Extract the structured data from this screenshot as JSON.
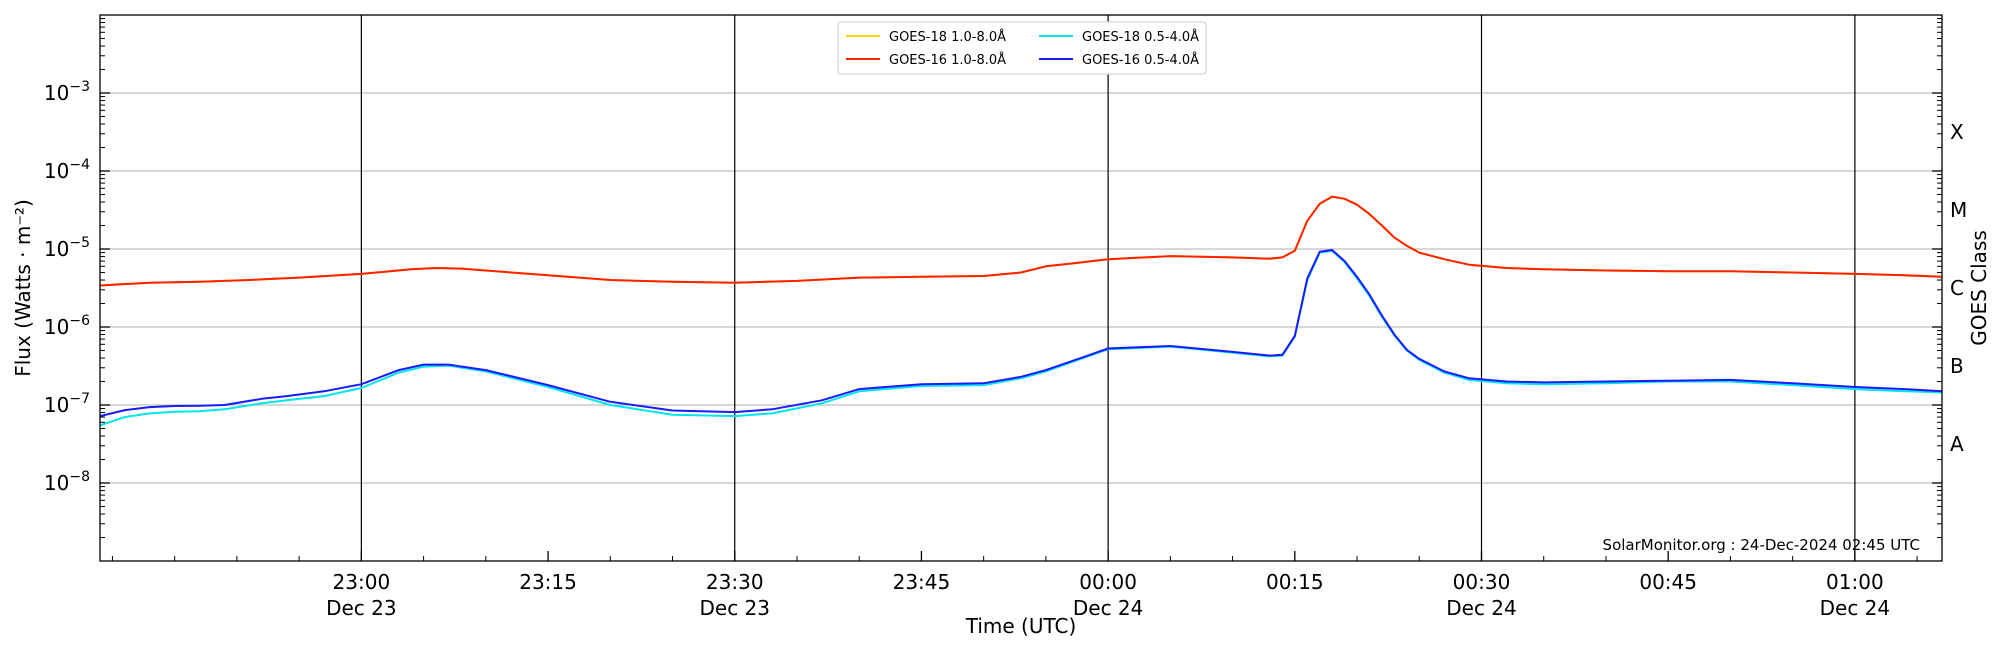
{
  "chart_data": {
    "type": "line",
    "title": "",
    "xlabel": "Time (UTC)",
    "ylabel": "Flux (Watts · m⁻²)",
    "y2label": "GOES Class",
    "y_scale": "log",
    "ylim": [
      1e-09,
      0.01
    ],
    "xlim": [
      "Dec 23 22:39",
      "Dec 24 01:07"
    ],
    "grid": "horizontal lines at major y ticks; vertical lines at every 30 min",
    "legend_position": "top-center",
    "y_ticks": [
      {
        "value": 1e-08,
        "base": "10",
        "exp": "−8"
      },
      {
        "value": 1e-07,
        "base": "10",
        "exp": "−7"
      },
      {
        "value": 1e-06,
        "base": "10",
        "exp": "−6"
      },
      {
        "value": 1e-05,
        "base": "10",
        "exp": "−5"
      },
      {
        "value": 0.0001,
        "base": "10",
        "exp": "−4"
      },
      {
        "value": 0.001,
        "base": "10",
        "exp": "−3"
      }
    ],
    "goes_classes": [
      {
        "label": "A",
        "value": 3.16e-08
      },
      {
        "label": "B",
        "value": 3.16e-07
      },
      {
        "label": "C",
        "value": 3.16e-06
      },
      {
        "label": "M",
        "value": 3.16e-05
      },
      {
        "label": "X",
        "value": 0.000316
      }
    ],
    "x_ticks": [
      {
        "minutes": 21,
        "time": "23:00",
        "date": "Dec 23"
      },
      {
        "minutes": 36,
        "time": "23:15",
        "date": ""
      },
      {
        "minutes": 51,
        "time": "23:30",
        "date": "Dec 23"
      },
      {
        "minutes": 66,
        "time": "23:45",
        "date": ""
      },
      {
        "minutes": 81,
        "time": "00:00",
        "date": "Dec 24"
      },
      {
        "minutes": 96,
        "time": "00:15",
        "date": ""
      },
      {
        "minutes": 111,
        "time": "00:30",
        "date": "Dec 24"
      },
      {
        "minutes": 126,
        "time": "00:45",
        "date": ""
      },
      {
        "minutes": 141,
        "time": "01:00",
        "date": "Dec 24"
      }
    ],
    "series": [
      {
        "name": "GOES-18 1.0-8.0Å",
        "color": "#ffd700",
        "x": [
          0,
          4,
          8,
          12,
          16,
          21,
          25,
          27,
          29,
          31,
          36,
          41,
          46,
          51,
          56,
          61,
          66,
          71,
          74,
          76,
          78,
          81,
          86,
          91,
          94,
          95,
          96,
          97,
          98,
          99,
          100,
          101,
          102,
          103,
          104,
          105,
          106,
          108,
          110,
          113,
          116,
          121,
          126,
          131,
          136,
          141,
          145,
          148
        ],
        "y": [
          3.4e-06,
          3.7e-06,
          3.8e-06,
          4e-06,
          4.3e-06,
          4.8e-06,
          5.5e-06,
          5.7e-06,
          5.6e-06,
          5.3e-06,
          4.6e-06,
          4e-06,
          3.8e-06,
          3.7e-06,
          3.9e-06,
          4.3e-06,
          4.4e-06,
          4.5e-06,
          5e-06,
          6e-06,
          6.5e-06,
          7.4e-06,
          8.1e-06,
          7.8e-06,
          7.5e-06,
          7.8e-06,
          9.5e-06,
          2.3e-05,
          3.8e-05,
          4.7e-05,
          4.4e-05,
          3.7e-05,
          2.8e-05,
          2e-05,
          1.4e-05,
          1.1e-05,
          9e-06,
          7.4e-06,
          6.3e-06,
          5.7e-06,
          5.5e-06,
          5.3e-06,
          5.2e-06,
          5.2e-06,
          5e-06,
          4.8e-06,
          4.6e-06,
          4.4e-06
        ]
      },
      {
        "name": "GOES-16 1.0-8.0Å",
        "color": "#ff2200",
        "x": [
          0,
          4,
          8,
          12,
          16,
          21,
          25,
          27,
          29,
          31,
          36,
          41,
          46,
          51,
          56,
          61,
          66,
          71,
          74,
          76,
          78,
          81,
          86,
          91,
          94,
          95,
          96,
          97,
          98,
          99,
          100,
          101,
          102,
          103,
          104,
          105,
          106,
          108,
          110,
          113,
          116,
          121,
          126,
          131,
          136,
          141,
          145,
          148
        ],
        "y": [
          3.4e-06,
          3.7e-06,
          3.8e-06,
          4e-06,
          4.3e-06,
          4.8e-06,
          5.5e-06,
          5.7e-06,
          5.6e-06,
          5.3e-06,
          4.6e-06,
          4e-06,
          3.8e-06,
          3.7e-06,
          3.9e-06,
          4.3e-06,
          4.4e-06,
          4.5e-06,
          5e-06,
          6e-06,
          6.5e-06,
          7.4e-06,
          8.1e-06,
          7.8e-06,
          7.5e-06,
          7.8e-06,
          9.5e-06,
          2.3e-05,
          3.8e-05,
          4.7e-05,
          4.4e-05,
          3.7e-05,
          2.8e-05,
          2e-05,
          1.4e-05,
          1.1e-05,
          9e-06,
          7.4e-06,
          6.3e-06,
          5.7e-06,
          5.5e-06,
          5.3e-06,
          5.2e-06,
          5.2e-06,
          5e-06,
          4.8e-06,
          4.6e-06,
          4.4e-06
        ]
      },
      {
        "name": "GOES-18 0.5-4.0Å",
        "color": "#00e5ee",
        "x": [
          0,
          2,
          4,
          6,
          8,
          10,
          13,
          15,
          18,
          21,
          24,
          26,
          28,
          31,
          36,
          41,
          46,
          51,
          54,
          58,
          61,
          66,
          71,
          74,
          76,
          79,
          81,
          86,
          91,
          94,
          95,
          96,
          97,
          98,
          99,
          100,
          101,
          102,
          103,
          104,
          105,
          106,
          108,
          110,
          113,
          116,
          121,
          126,
          131,
          136,
          141,
          145,
          148
        ],
        "y": [
          5.5e-08,
          7e-08,
          7.8e-08,
          8.2e-08,
          8.3e-08,
          8.8e-08,
          1.05e-07,
          1.15e-07,
          1.3e-07,
          1.65e-07,
          2.6e-07,
          3.1e-07,
          3.2e-07,
          2.7e-07,
          1.7e-07,
          1e-07,
          7.5e-08,
          7.2e-08,
          7.8e-08,
          1.05e-07,
          1.5e-07,
          1.75e-07,
          1.8e-07,
          2.2e-07,
          2.7e-07,
          4e-07,
          5.2e-07,
          5.6e-07,
          4.7e-07,
          4.2e-07,
          4.3e-07,
          7.5e-07,
          4e-06,
          9e-06,
          9.5e-06,
          6.8e-06,
          4.2e-06,
          2.5e-06,
          1.35e-06,
          7.8e-07,
          5e-07,
          3.8e-07,
          2.6e-07,
          2.1e-07,
          1.9e-07,
          1.85e-07,
          1.9e-07,
          2e-07,
          2e-07,
          1.8e-07,
          1.6e-07,
          1.5e-07,
          1.45e-07
        ]
      },
      {
        "name": "GOES-16 0.5-4.0Å",
        "color": "#1a1aff",
        "x": [
          0,
          2,
          4,
          6,
          8,
          10,
          13,
          15,
          18,
          21,
          24,
          26,
          28,
          31,
          36,
          41,
          46,
          51,
          54,
          58,
          61,
          66,
          71,
          74,
          76,
          79,
          81,
          86,
          91,
          94,
          95,
          96,
          97,
          98,
          99,
          100,
          101,
          102,
          103,
          104,
          105,
          106,
          108,
          110,
          113,
          116,
          121,
          126,
          131,
          136,
          141,
          145,
          148
        ],
        "y": [
          7.2e-08,
          8.6e-08,
          9.4e-08,
          9.7e-08,
          9.8e-08,
          1e-07,
          1.2e-07,
          1.3e-07,
          1.5e-07,
          1.85e-07,
          2.8e-07,
          3.3e-07,
          3.3e-07,
          2.8e-07,
          1.8e-07,
          1.1e-07,
          8.5e-08,
          8.1e-08,
          8.8e-08,
          1.15e-07,
          1.6e-07,
          1.85e-07,
          1.9e-07,
          2.3e-07,
          2.8e-07,
          4.1e-07,
          5.3e-07,
          5.7e-07,
          4.8e-07,
          4.3e-07,
          4.4e-07,
          7.7e-07,
          4.2e-06,
          9.2e-06,
          9.7e-06,
          7e-06,
          4.4e-06,
          2.6e-06,
          1.4e-06,
          8e-07,
          5.1e-07,
          3.9e-07,
          2.7e-07,
          2.2e-07,
          2e-07,
          1.95e-07,
          2e-07,
          2.05e-07,
          2.1e-07,
          1.9e-07,
          1.7e-07,
          1.6e-07,
          1.5e-07
        ]
      }
    ],
    "annotation": "SolarMonitor.org : 24-Dec-2024 02:45 UTC"
  }
}
